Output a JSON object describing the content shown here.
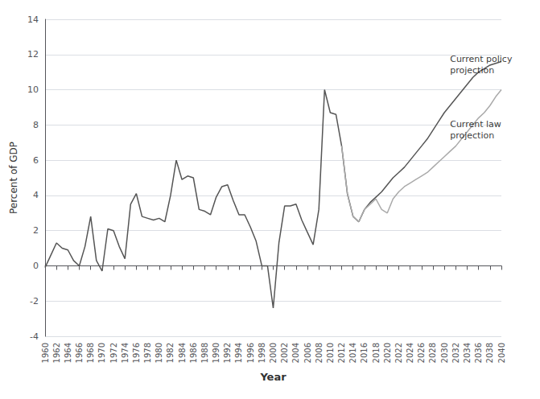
{
  "chart_data": {
    "type": "line",
    "xlabel": "Year",
    "ylabel": "Percent of GDP",
    "xlim": [
      1960,
      2040
    ],
    "xticks": [
      1960,
      1962,
      1964,
      1966,
      1968,
      1970,
      1972,
      1974,
      1976,
      1978,
      1980,
      1982,
      1984,
      1986,
      1988,
      1990,
      1992,
      1994,
      1996,
      1998,
      2000,
      2002,
      2004,
      2006,
      2008,
      2010,
      2012,
      2014,
      2016,
      2018,
      2020,
      2022,
      2024,
      2026,
      2028,
      2030,
      2032,
      2034,
      2036,
      2038,
      2040
    ],
    "ylim": [
      -4,
      14
    ],
    "yticks": [
      -4,
      -2,
      0,
      2,
      4,
      6,
      8,
      10,
      12,
      14
    ],
    "grid": true,
    "series": [
      {
        "color": "#555555",
        "x": [
          1960,
          1961,
          1962,
          1963,
          1964,
          1965,
          1966,
          1967,
          1968,
          1969,
          1970,
          1971,
          1972,
          1973,
          1974,
          1975,
          1976,
          1977,
          1978,
          1979,
          1980,
          1981,
          1982,
          1983,
          1984,
          1985,
          1986,
          1987,
          1988,
          1989,
          1990,
          1991,
          1992,
          1993,
          1994,
          1995,
          1996,
          1997,
          1998,
          1999,
          2000,
          2001,
          2002,
          2003,
          2004,
          2005,
          2006,
          2007,
          2008,
          2009,
          2010,
          2011,
          2012
        ],
        "values": [
          -0.1,
          0.6,
          1.3,
          1.0,
          0.9,
          0.3,
          0.0,
          1.1,
          2.8,
          0.3,
          -0.3,
          2.1,
          2.0,
          1.1,
          0.4,
          3.5,
          4.1,
          2.8,
          2.7,
          2.6,
          2.7,
          2.5,
          4.0,
          6.0,
          4.9,
          5.1,
          5.0,
          3.2,
          3.1,
          2.9,
          3.9,
          4.5,
          4.6,
          3.7,
          2.9,
          2.9,
          2.2,
          1.4,
          0.0,
          0.0,
          -2.4,
          1.3,
          3.4,
          3.4,
          3.5,
          2.6,
          1.9,
          1.2,
          3.2,
          10.0,
          8.7,
          8.6,
          6.8
        ]
      },
      {
        "color": "#555555",
        "x": [
          2012,
          2013,
          2014,
          2015,
          2016,
          2017,
          2018,
          2019,
          2020,
          2021,
          2022,
          2023,
          2024,
          2025,
          2026,
          2027,
          2028,
          2029,
          2030,
          2031,
          2032,
          2033,
          2034,
          2035,
          2036,
          2037,
          2038,
          2039,
          2040
        ],
        "values": [
          6.8,
          4.1,
          2.8,
          2.5,
          3.2,
          3.6,
          3.9,
          4.2,
          4.6,
          5.0,
          5.3,
          5.6,
          6.0,
          6.4,
          6.8,
          7.2,
          7.7,
          8.2,
          8.7,
          9.1,
          9.5,
          9.9,
          10.3,
          10.7,
          11.0,
          11.2,
          11.4,
          11.5,
          11.6
        ]
      },
      {
        "color": "#aaaaaa",
        "x": [
          2012,
          2013,
          2014,
          2015,
          2016,
          2017,
          2018,
          2019,
          2020,
          2021,
          2022,
          2023,
          2024,
          2025,
          2026,
          2027,
          2028,
          2029,
          2030,
          2031,
          2032,
          2033,
          2034,
          2035,
          2036,
          2037,
          2038,
          2039,
          2040
        ],
        "values": [
          6.8,
          4.1,
          2.8,
          2.5,
          3.2,
          3.5,
          3.8,
          3.2,
          3.0,
          3.8,
          4.2,
          4.5,
          4.7,
          4.9,
          5.1,
          5.3,
          5.6,
          5.9,
          6.2,
          6.5,
          6.8,
          7.2,
          7.6,
          8.0,
          8.4,
          8.7,
          9.1,
          9.6,
          10.0
        ]
      }
    ],
    "annotations": [
      {
        "text": "Current policy\nprojection",
        "x": 2031,
        "y": 10.8
      },
      {
        "text": "Current law\nprojection",
        "x": 2031,
        "y": 7.1
      }
    ]
  }
}
